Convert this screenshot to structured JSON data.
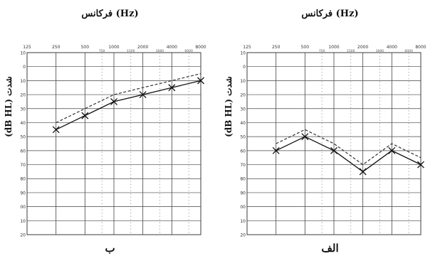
{
  "chart_data": [
    {
      "type": "line",
      "panel": "left",
      "title": "فرکانس (Hz)",
      "ylabel": "(dB HL) شدت",
      "caption": "ب",
      "x_ticks": [
        "125",
        "250",
        "500",
        "1000",
        "2000",
        "4000",
        "8000"
      ],
      "x_ticks_minor": [
        "750",
        "1500",
        "3000",
        "6000"
      ],
      "y_ticks": [
        "-10",
        "0",
        "10",
        "20",
        "30",
        "40",
        "50",
        "60",
        "70",
        "80",
        "90",
        "100",
        "110",
        "120"
      ],
      "ylim": [
        -10,
        120
      ],
      "y_inverted": true,
      "series": [
        {
          "style": "solid-x",
          "values": [
            [
              250,
              45
            ],
            [
              500,
              35
            ],
            [
              1000,
              25
            ],
            [
              2000,
              20
            ],
            [
              4000,
              15
            ],
            [
              8000,
              10
            ]
          ]
        },
        {
          "style": "dashed",
          "values": [
            [
              250,
              40
            ],
            [
              500,
              30
            ],
            [
              1000,
              20
            ],
            [
              2000,
              15
            ],
            [
              4000,
              10
            ],
            [
              8000,
              5
            ]
          ]
        }
      ]
    },
    {
      "type": "line",
      "panel": "right",
      "title": "فرکانس (Hz)",
      "ylabel": "(dB HL) شدت",
      "caption": "الف",
      "x_ticks": [
        "125",
        "250",
        "500",
        "1000",
        "2000",
        "4000",
        "8000"
      ],
      "x_ticks_minor": [
        "750",
        "1500",
        "3000",
        "6000"
      ],
      "y_ticks": [
        "-10",
        "0",
        "10",
        "20",
        "30",
        "40",
        "50",
        "60",
        "70",
        "80",
        "90",
        "100",
        "110",
        "120"
      ],
      "ylim": [
        -10,
        120
      ],
      "y_inverted": true,
      "series": [
        {
          "style": "solid-x",
          "values": [
            [
              250,
              60
            ],
            [
              500,
              50
            ],
            [
              1000,
              60
            ],
            [
              2000,
              75
            ],
            [
              4000,
              60
            ],
            [
              8000,
              70
            ]
          ]
        },
        {
          "style": "dashed",
          "values": [
            [
              250,
              55
            ],
            [
              500,
              45
            ],
            [
              1000,
              55
            ],
            [
              2000,
              70
            ],
            [
              4000,
              55
            ],
            [
              8000,
              65
            ]
          ]
        }
      ]
    }
  ]
}
